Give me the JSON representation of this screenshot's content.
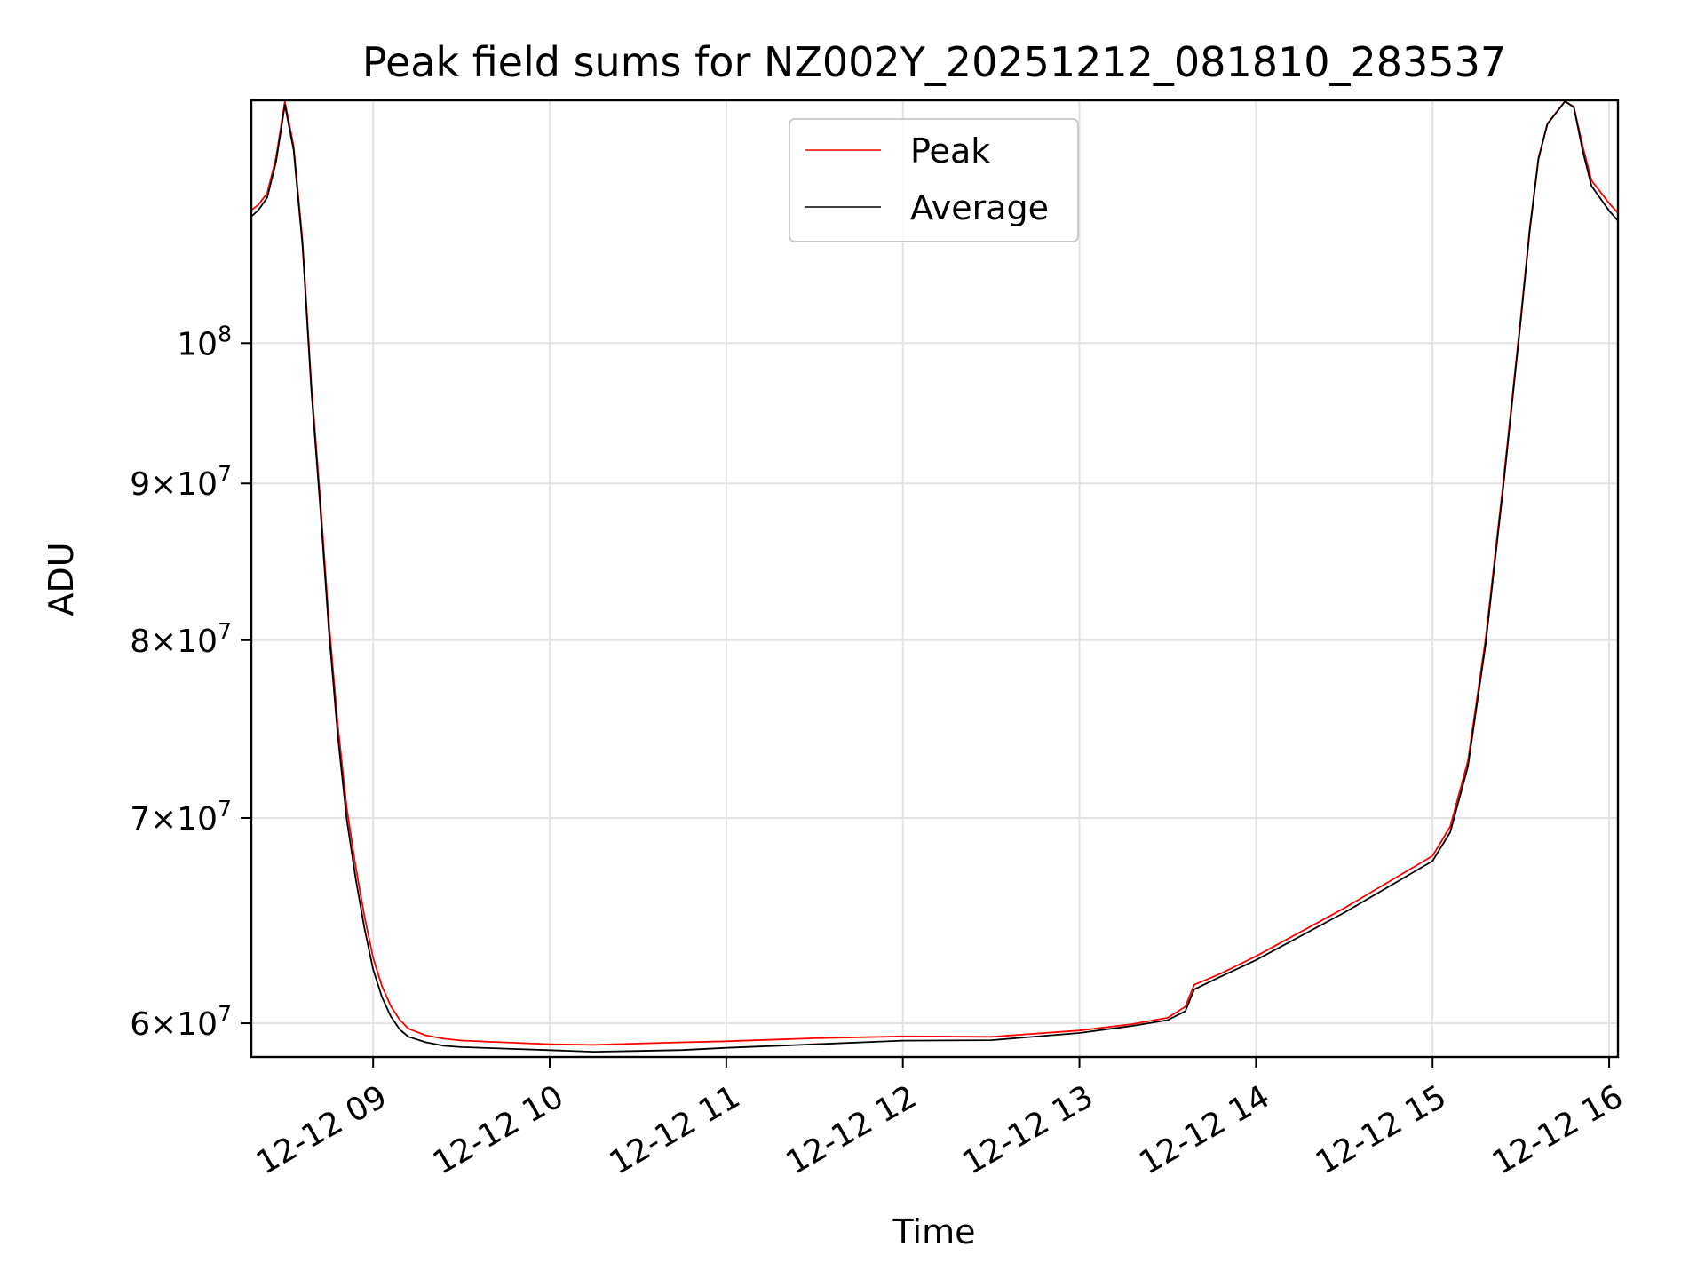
{
  "chart_data": {
    "type": "line",
    "title": "Peak field sums for NZ002Y_20251212_081810_283537",
    "xlabel": "Time",
    "ylabel": "ADU",
    "yscale": "log",
    "xlim": [
      8.31,
      16.05
    ],
    "ylim": [
      58500000,
      120000000
    ],
    "grid": true,
    "legend_position": "upper center",
    "x_unit": "hours on 12-12",
    "x_ticks": [
      {
        "value": 9,
        "label": "12-12 09"
      },
      {
        "value": 10,
        "label": "12-12 10"
      },
      {
        "value": 11,
        "label": "12-12 11"
      },
      {
        "value": 12,
        "label": "12-12 12"
      },
      {
        "value": 13,
        "label": "12-12 13"
      },
      {
        "value": 14,
        "label": "12-12 14"
      },
      {
        "value": 15,
        "label": "12-12 15"
      },
      {
        "value": 16,
        "label": "12-12 16"
      }
    ],
    "y_ticks": [
      {
        "value": 60000000,
        "mantissa": "6",
        "exponent": "7"
      },
      {
        "value": 70000000,
        "mantissa": "7",
        "exponent": "7"
      },
      {
        "value": 80000000,
        "mantissa": "8",
        "exponent": "7"
      },
      {
        "value": 90000000,
        "mantissa": "9",
        "exponent": "7"
      },
      {
        "value": 100000000,
        "mantissa": "",
        "exponent": "8"
      }
    ],
    "y_tick_base": "10",
    "y_tick_times": "×",
    "series": [
      {
        "name": "Peak",
        "color": "#ff0000",
        "x": [
          8.31,
          8.35,
          8.4,
          8.45,
          8.5,
          8.55,
          8.6,
          8.65,
          8.7,
          8.75,
          8.8,
          8.85,
          8.9,
          8.95,
          9.0,
          9.05,
          9.1,
          9.15,
          9.2,
          9.3,
          9.4,
          9.5,
          9.75,
          10.0,
          10.25,
          10.5,
          10.75,
          11.0,
          11.5,
          12.0,
          12.5,
          13.0,
          13.3,
          13.5,
          13.6,
          13.65,
          13.8,
          14.0,
          14.5,
          15.0,
          15.1,
          15.2,
          15.3,
          15.4,
          15.5,
          15.55,
          15.6,
          15.65,
          15.7,
          15.75,
          15.8,
          15.85,
          15.9,
          15.95,
          16.0,
          16.05
        ],
        "y": [
          110500000,
          111000000,
          112000000,
          115000000,
          120000000,
          116000000,
          108000000,
          97000000,
          89000000,
          81000000,
          75000000,
          70500000,
          67500000,
          65000000,
          63000000,
          61700000,
          60800000,
          60200000,
          59800000,
          59500000,
          59350000,
          59250000,
          59150000,
          59050000,
          59000000,
          59050000,
          59100000,
          59150000,
          59300000,
          59400000,
          59400000,
          59700000,
          60000000,
          60300000,
          60800000,
          61800000,
          62300000,
          63100000,
          65400000,
          68000000,
          69500000,
          73000000,
          80000000,
          90000000,
          102000000,
          109000000,
          115000000,
          118000000,
          119000000,
          120000000,
          119500000,
          116000000,
          113000000,
          112000000,
          111000000,
          110200000
        ]
      },
      {
        "name": "Average",
        "color": "#000000",
        "x": [
          8.31,
          8.35,
          8.4,
          8.45,
          8.5,
          8.55,
          8.6,
          8.65,
          8.7,
          8.75,
          8.8,
          8.85,
          8.9,
          8.95,
          9.0,
          9.05,
          9.1,
          9.15,
          9.2,
          9.3,
          9.4,
          9.5,
          9.75,
          10.0,
          10.25,
          10.5,
          10.75,
          11.0,
          11.5,
          12.0,
          12.5,
          13.0,
          13.3,
          13.5,
          13.6,
          13.65,
          13.8,
          14.0,
          14.5,
          15.0,
          15.1,
          15.2,
          15.3,
          15.4,
          15.5,
          15.55,
          15.6,
          15.65,
          15.7,
          15.75,
          15.8,
          15.85,
          15.9,
          15.95,
          16.0,
          16.05
        ],
        "y": [
          110000000,
          110500000,
          111500000,
          114500000,
          119500000,
          115500000,
          107500000,
          96500000,
          88500000,
          80500000,
          74500000,
          70000000,
          67000000,
          64500000,
          62500000,
          61200000,
          60300000,
          59700000,
          59350000,
          59100000,
          58950000,
          58900000,
          58850000,
          58800000,
          58750000,
          58800000,
          58850000,
          58950000,
          59100000,
          59250000,
          59250000,
          59550000,
          59850000,
          60100000,
          60500000,
          61500000,
          62100000,
          62900000,
          65200000,
          67800000,
          69300000,
          72800000,
          79800000,
          89800000,
          101800000,
          108800000,
          114800000,
          117800000,
          118800000,
          119800000,
          119300000,
          115500000,
          112500000,
          111500000,
          110500000,
          109700000
        ]
      }
    ]
  }
}
